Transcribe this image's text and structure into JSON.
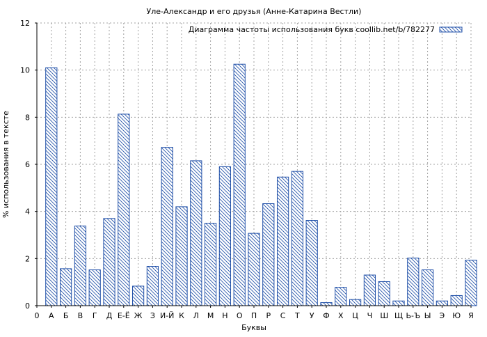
{
  "chart_data": {
    "type": "bar",
    "title": "Уле-Александр и его друзья (Анне-Катарина Вестли)",
    "xlabel": "Буквы",
    "ylabel": "% использования в тексте",
    "ylim": [
      0,
      12
    ],
    "yticks": [
      "0",
      "2",
      "4",
      "6",
      "8",
      "10",
      "12"
    ],
    "grid": true,
    "legend_position": "top-right",
    "x_tick_labels": [
      "0",
      "А",
      "Б",
      "В",
      "Г",
      "Д",
      "Е-Ё",
      "Ж",
      "З",
      "И-Й",
      "К",
      "Л",
      "М",
      "Н",
      "О",
      "П",
      "Р",
      "С",
      "Т",
      "У",
      "Ф",
      "Х",
      "Ц",
      "Ч",
      "Ш",
      "Щ",
      "Ь-Ъ",
      "Ы",
      "Э",
      "Ю",
      "Я"
    ],
    "categories": [
      "А",
      "Б",
      "В",
      "Г",
      "Д",
      "Е-Ё",
      "Ж",
      "З",
      "И-Й",
      "К",
      "Л",
      "М",
      "Н",
      "О",
      "П",
      "Р",
      "С",
      "Т",
      "У",
      "Ф",
      "Х",
      "Ц",
      "Ч",
      "Ш",
      "Щ",
      "Ь-Ъ",
      "Ы",
      "Э",
      "Ю",
      "Я"
    ],
    "series": [
      {
        "name": "Диаграмма частоты использования букв coollib.net/b/782277",
        "values": [
          10.1,
          1.57,
          3.38,
          1.52,
          3.7,
          8.13,
          0.83,
          1.67,
          6.72,
          4.2,
          6.15,
          3.5,
          5.9,
          10.25,
          3.07,
          4.33,
          5.46,
          5.7,
          3.62,
          0.13,
          0.78,
          0.26,
          1.3,
          1.02,
          0.2,
          2.02,
          1.52,
          0.2,
          0.43,
          1.93
        ]
      }
    ],
    "colors": {
      "bar_stroke": "#1f4fa8",
      "hatch": "#1f4fa8",
      "grid": "#a0a0a0",
      "axis": "#000000"
    }
  }
}
